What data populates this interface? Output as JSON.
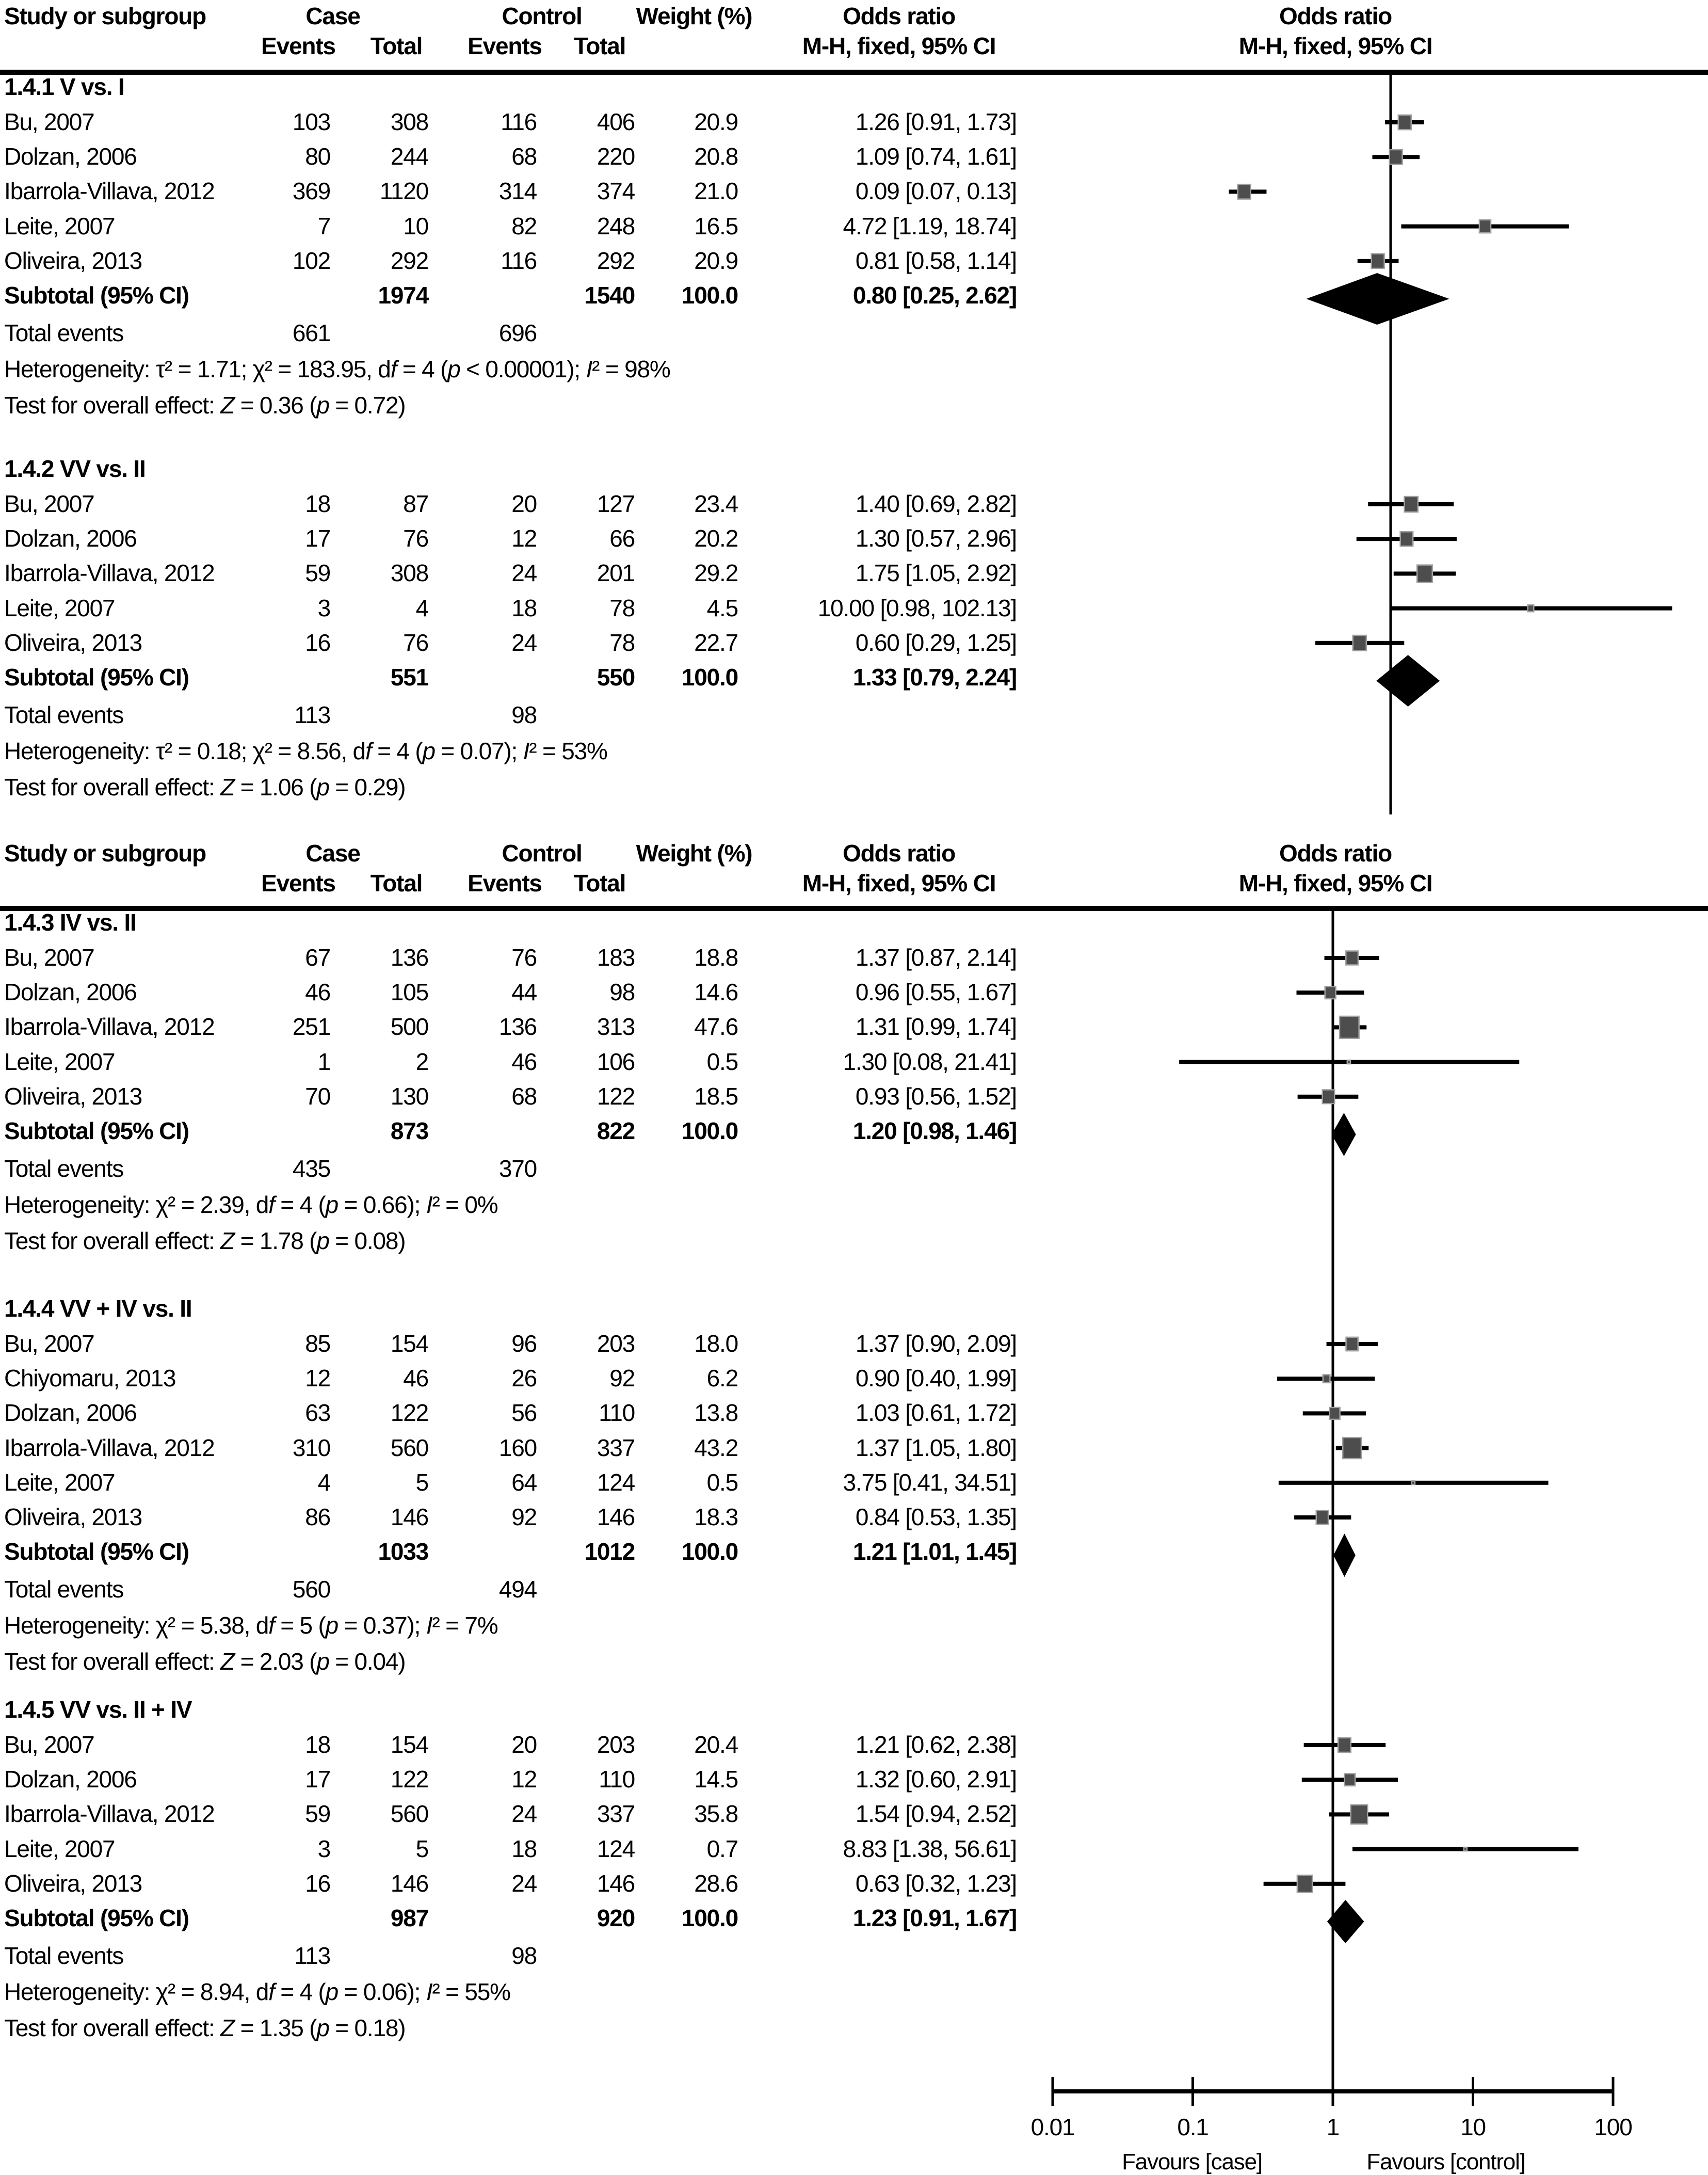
{
  "chart_data": {
    "type": "forest",
    "effect_label": "Odds ratio",
    "method_label": "M-H, fixed, 95% CI",
    "columns": {
      "study": "Study or subgroup",
      "case": "Case",
      "control": "Control",
      "events": "Events",
      "total": "Total",
      "weight": "Weight (%)",
      "odds_ratio": "Odds ratio",
      "method": "M-H, fixed, 95% CI"
    },
    "axis": {
      "scale": "log",
      "tick_labels": [
        "0.01",
        "0.1",
        "1",
        "10",
        "100"
      ],
      "tick_values": [
        0.01,
        0.1,
        1,
        10,
        100
      ],
      "left_label": "Favours [case]",
      "right_label": "Favours [control]"
    },
    "colors": {
      "marker": "#4d4d4d",
      "marker_border": "#a0a0a0",
      "diamond": "#000000",
      "line": "#000000",
      "text": "#000000",
      "background": "#ffffff"
    },
    "panels": [
      {
        "sections": [
          {
            "label": "1.4.1 V vs. I",
            "studies": [
              {
                "name": "Bu, 2007",
                "case_events": "103",
                "case_total": "308",
                "control_events": "116",
                "control_total": "406",
                "weight": "20.9",
                "w": 20.9,
                "or_text": "1.26 [0.91, 1.73]",
                "or": 1.26,
                "lo": 0.91,
                "hi": 1.73
              },
              {
                "name": "Dolzan, 2006",
                "case_events": "80",
                "case_total": "244",
                "control_events": "68",
                "control_total": "220",
                "weight": "20.8",
                "w": 20.8,
                "or_text": "1.09 [0.74, 1.61]",
                "or": 1.09,
                "lo": 0.74,
                "hi": 1.61
              },
              {
                "name": "Ibarrola-Villava, 2012",
                "case_events": "369",
                "case_total": "1120",
                "control_events": "314",
                "control_total": "374",
                "weight": "21.0",
                "w": 21.0,
                "or_text": "0.09 [0.07, 0.13]",
                "or": 0.09,
                "lo": 0.07,
                "hi": 0.13
              },
              {
                "name": "Leite, 2007",
                "case_events": "7",
                "case_total": "10",
                "control_events": "82",
                "control_total": "248",
                "weight": "16.5",
                "w": 16.5,
                "or_text": "4.72 [1.19, 18.74]",
                "or": 4.72,
                "lo": 1.19,
                "hi": 18.74
              },
              {
                "name": "Oliveira, 2013",
                "case_events": "102",
                "case_total": "292",
                "control_events": "116",
                "control_total": "292",
                "weight": "20.9",
                "w": 20.9,
                "or_text": "0.81 [0.58, 1.14]",
                "or": 0.81,
                "lo": 0.58,
                "hi": 1.14
              }
            ],
            "subtotal": {
              "label": "Subtotal (95% CI)",
              "case_total": "1974",
              "control_total": "1540",
              "weight": "100.0",
              "or_text": "0.80 [0.25, 2.62]",
              "or": 0.8,
              "lo": 0.25,
              "hi": 2.62
            },
            "total_events": {
              "label": "Total events",
              "case": "661",
              "control": "696"
            },
            "heterogeneity": "Heterogeneity: τ² = 1.71; χ² = 183.95, d*f* = 4 (*p* < 0.00001); *I*² = 98%",
            "overall_test": "Test for overall effect: *Z* = 0.36 (*p* = 0.72)"
          },
          {
            "label": "1.4.2 VV vs. II",
            "studies": [
              {
                "name": "Bu, 2007",
                "case_events": "18",
                "case_total": "87",
                "control_events": "20",
                "control_total": "127",
                "weight": "23.4",
                "w": 23.4,
                "or_text": "1.40 [0.69, 2.82]",
                "or": 1.4,
                "lo": 0.69,
                "hi": 2.82
              },
              {
                "name": "Dolzan, 2006",
                "case_events": "17",
                "case_total": "76",
                "control_events": "12",
                "control_total": "66",
                "weight": "20.2",
                "w": 20.2,
                "or_text": "1.30 [0.57, 2.96]",
                "or": 1.3,
                "lo": 0.57,
                "hi": 2.96
              },
              {
                "name": "Ibarrola-Villava, 2012",
                "case_events": "59",
                "case_total": "308",
                "control_events": "24",
                "control_total": "201",
                "weight": "29.2",
                "w": 29.2,
                "or_text": "1.75 [1.05, 2.92]",
                "or": 1.75,
                "lo": 1.05,
                "hi": 2.92
              },
              {
                "name": "Leite, 2007",
                "case_events": "3",
                "case_total": "4",
                "control_events": "18",
                "control_total": "78",
                "weight": "4.5",
                "w": 4.5,
                "or_text": "10.00 [0.98, 102.13]",
                "or": 10.0,
                "lo": 0.98,
                "hi": 102.13
              },
              {
                "name": "Oliveira, 2013",
                "case_events": "16",
                "case_total": "76",
                "control_events": "24",
                "control_total": "78",
                "weight": "22.7",
                "w": 22.7,
                "or_text": "0.60 [0.29, 1.25]",
                "or": 0.6,
                "lo": 0.29,
                "hi": 1.25
              }
            ],
            "subtotal": {
              "label": "Subtotal (95% CI)",
              "case_total": "551",
              "control_total": "550",
              "weight": "100.0",
              "or_text": "1.33 [0.79, 2.24]",
              "or": 1.33,
              "lo": 0.79,
              "hi": 2.24
            },
            "total_events": {
              "label": "Total events",
              "case": "113",
              "control": "98"
            },
            "heterogeneity": "Heterogeneity: τ² = 0.18; χ² = 8.56, d*f* = 4 (*p* = 0.07); *I*² = 53%",
            "overall_test": "Test for overall effect: *Z* = 1.06 (*p* = 0.29)"
          }
        ]
      },
      {
        "sections": [
          {
            "label": "1.4.3 IV vs. II",
            "studies": [
              {
                "name": "Bu, 2007",
                "case_events": "67",
                "case_total": "136",
                "control_events": "76",
                "control_total": "183",
                "weight": "18.8",
                "w": 18.8,
                "or_text": "1.37 [0.87, 2.14]",
                "or": 1.37,
                "lo": 0.87,
                "hi": 2.14
              },
              {
                "name": "Dolzan, 2006",
                "case_events": "46",
                "case_total": "105",
                "control_events": "44",
                "control_total": "98",
                "weight": "14.6",
                "w": 14.6,
                "or_text": "0.96 [0.55, 1.67]",
                "or": 0.96,
                "lo": 0.55,
                "hi": 1.67
              },
              {
                "name": "Ibarrola-Villava, 2012",
                "case_events": "251",
                "case_total": "500",
                "control_events": "136",
                "control_total": "313",
                "weight": "47.6",
                "w": 47.6,
                "or_text": "1.31 [0.99, 1.74]",
                "or": 1.31,
                "lo": 0.99,
                "hi": 1.74
              },
              {
                "name": "Leite, 2007",
                "case_events": "1",
                "case_total": "2",
                "control_events": "46",
                "control_total": "106",
                "weight": "0.5",
                "w": 0.5,
                "or_text": "1.30 [0.08, 21.41]",
                "or": 1.3,
                "lo": 0.08,
                "hi": 21.41
              },
              {
                "name": "Oliveira, 2013",
                "case_events": "70",
                "case_total": "130",
                "control_events": "68",
                "control_total": "122",
                "weight": "18.5",
                "w": 18.5,
                "or_text": "0.93 [0.56, 1.52]",
                "or": 0.93,
                "lo": 0.56,
                "hi": 1.52
              }
            ],
            "subtotal": {
              "label": "Subtotal (95% CI)",
              "case_total": "873",
              "control_total": "822",
              "weight": "100.0",
              "or_text": "1.20 [0.98, 1.46]",
              "or": 1.2,
              "lo": 0.98,
              "hi": 1.46
            },
            "total_events": {
              "label": "Total events",
              "case": "435",
              "control": "370"
            },
            "heterogeneity": "Heterogeneity: χ² = 2.39, d*f* = 4 (*p* = 0.66); *I*² = 0%",
            "overall_test": "Test for overall effect: *Z* = 1.78 (*p* = 0.08)"
          },
          {
            "label": "1.4.4 VV + IV vs. II",
            "studies": [
              {
                "name": "Bu, 2007",
                "case_events": "85",
                "case_total": "154",
                "control_events": "96",
                "control_total": "203",
                "weight": "18.0",
                "w": 18.0,
                "or_text": "1.37 [0.90, 2.09]",
                "or": 1.37,
                "lo": 0.9,
                "hi": 2.09
              },
              {
                "name": "Chiyomaru, 2013",
                "case_events": "12",
                "case_total": "46",
                "control_events": "26",
                "control_total": "92",
                "weight": "6.2",
                "w": 6.2,
                "or_text": "0.90 [0.40, 1.99]",
                "or": 0.9,
                "lo": 0.4,
                "hi": 1.99
              },
              {
                "name": "Dolzan, 2006",
                "case_events": "63",
                "case_total": "122",
                "control_events": "56",
                "control_total": "110",
                "weight": "13.8",
                "w": 13.8,
                "or_text": "1.03 [0.61, 1.72]",
                "or": 1.03,
                "lo": 0.61,
                "hi": 1.72
              },
              {
                "name": "Ibarrola-Villava, 2012",
                "case_events": "310",
                "case_total": "560",
                "control_events": "160",
                "control_total": "337",
                "weight": "43.2",
                "w": 43.2,
                "or_text": "1.37 [1.05, 1.80]",
                "or": 1.37,
                "lo": 1.05,
                "hi": 1.8
              },
              {
                "name": "Leite, 2007",
                "case_events": "4",
                "case_total": "5",
                "control_events": "64",
                "control_total": "124",
                "weight": "0.5",
                "w": 0.5,
                "or_text": "3.75 [0.41, 34.51]",
                "or": 3.75,
                "lo": 0.41,
                "hi": 34.51
              },
              {
                "name": "Oliveira, 2013",
                "case_events": "86",
                "case_total": "146",
                "control_events": "92",
                "control_total": "146",
                "weight": "18.3",
                "w": 18.3,
                "or_text": "0.84 [0.53, 1.35]",
                "or": 0.84,
                "lo": 0.53,
                "hi": 1.35
              }
            ],
            "subtotal": {
              "label": "Subtotal (95% CI)",
              "case_total": "1033",
              "control_total": "1012",
              "weight": "100.0",
              "or_text": "1.21 [1.01, 1.45]",
              "or": 1.21,
              "lo": 1.01,
              "hi": 1.45
            },
            "total_events": {
              "label": "Total events",
              "case": "560",
              "control": "494"
            },
            "heterogeneity": "Heterogeneity: χ² = 5.38, d*f* = 5 (*p* = 0.37); *I*² = 7%",
            "overall_test": "Test for overall effect: *Z* = 2.03 (*p* = 0.04)"
          },
          {
            "label": "1.4.5 VV vs. II + IV",
            "studies": [
              {
                "name": "Bu, 2007",
                "case_events": "18",
                "case_total": "154",
                "control_events": "20",
                "control_total": "203",
                "weight": "20.4",
                "w": 20.4,
                "or_text": "1.21 [0.62, 2.38]",
                "or": 1.21,
                "lo": 0.62,
                "hi": 2.38
              },
              {
                "name": "Dolzan, 2006",
                "case_events": "17",
                "case_total": "122",
                "control_events": "12",
                "control_total": "110",
                "weight": "14.5",
                "w": 14.5,
                "or_text": "1.32 [0.60, 2.91]",
                "or": 1.32,
                "lo": 0.6,
                "hi": 2.91
              },
              {
                "name": "Ibarrola-Villava, 2012",
                "case_events": "59",
                "case_total": "560",
                "control_events": "24",
                "control_total": "337",
                "weight": "35.8",
                "w": 35.8,
                "or_text": "1.54 [0.94, 2.52]",
                "or": 1.54,
                "lo": 0.94,
                "hi": 2.52
              },
              {
                "name": "Leite, 2007",
                "case_events": "3",
                "case_total": "5",
                "control_events": "18",
                "control_total": "124",
                "weight": "0.7",
                "w": 0.7,
                "or_text": "8.83 [1.38, 56.61]",
                "or": 8.83,
                "lo": 1.38,
                "hi": 56.61
              },
              {
                "name": "Oliveira, 2013",
                "case_events": "16",
                "case_total": "146",
                "control_events": "24",
                "control_total": "146",
                "weight": "28.6",
                "w": 28.6,
                "or_text": "0.63 [0.32, 1.23]",
                "or": 0.63,
                "lo": 0.32,
                "hi": 1.23
              }
            ],
            "subtotal": {
              "label": "Subtotal (95% CI)",
              "case_total": "987",
              "control_total": "920",
              "weight": "100.0",
              "or_text": "1.23 [0.91, 1.67]",
              "or": 1.23,
              "lo": 0.91,
              "hi": 1.67
            },
            "total_events": {
              "label": "Total events",
              "case": "113",
              "control": "98"
            },
            "heterogeneity": "Heterogeneity: χ² = 8.94, d*f* = 4 (*p* = 0.06); *I*² = 55%",
            "overall_test": "Test for overall effect: *Z* = 1.35 (*p* = 0.18)"
          }
        ]
      }
    ]
  }
}
